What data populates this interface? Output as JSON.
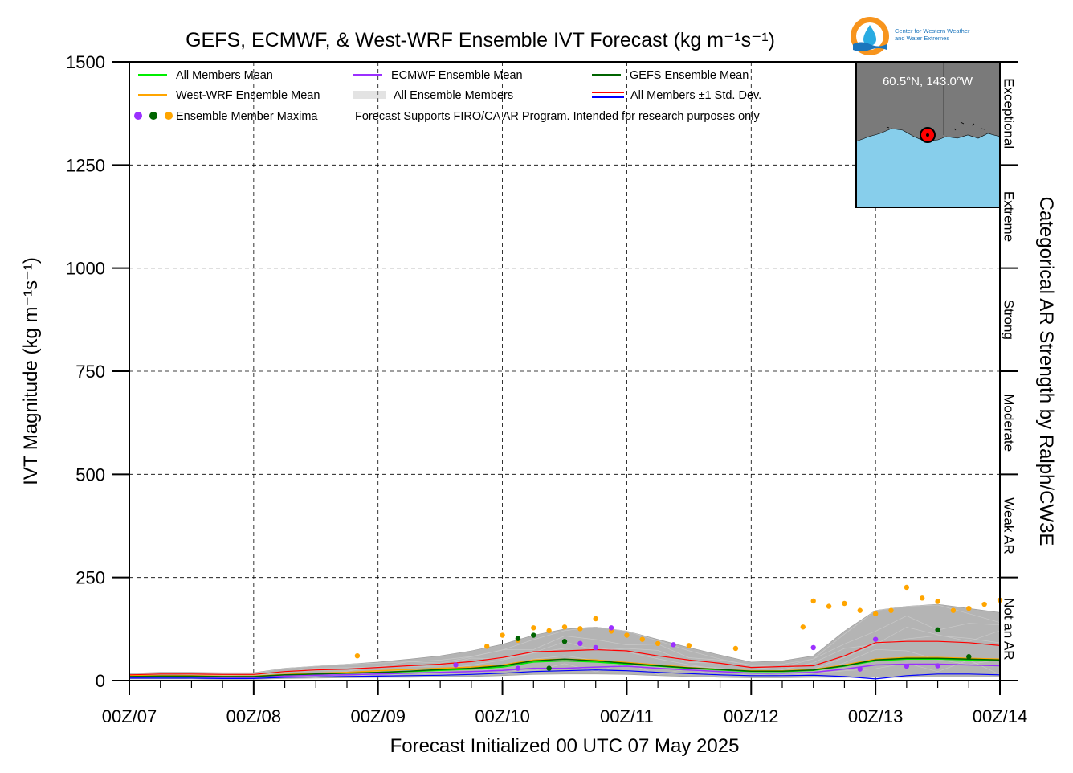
{
  "chart_data": {
    "type": "line",
    "title": "GEFS, ECMWF, & West-WRF Ensemble IVT Forecast (kg m⁻¹s⁻¹)",
    "xlabel": "Forecast Initialized 00 UTC 07 May 2025",
    "ylabel": "IVT Magnitude (kg m⁻¹s⁻¹)",
    "right_label": "Categorical AR Strength by Ralph/CW3E",
    "ylim": [
      0,
      1500
    ],
    "xlim_hours": [
      0,
      168
    ],
    "x_tick_hours": [
      0,
      24,
      48,
      72,
      96,
      120,
      144,
      168
    ],
    "x_tick_labels": [
      "00Z/07",
      "00Z/08",
      "00Z/09",
      "00Z/10",
      "00Z/11",
      "00Z/12",
      "00Z/13",
      "00Z/14"
    ],
    "y_ticks": [
      0,
      250,
      500,
      750,
      1000,
      1250,
      1500
    ],
    "y_tick_labels": [
      "0",
      "250",
      "500",
      "750",
      "1000",
      "1250",
      "1500"
    ],
    "grid": true,
    "categories": [
      {
        "label": "Not an AR",
        "range": [
          0,
          250
        ]
      },
      {
        "label": "Weak AR",
        "range": [
          250,
          500
        ]
      },
      {
        "label": "Moderate",
        "range": [
          500,
          750
        ]
      },
      {
        "label": "Strong",
        "range": [
          750,
          1000
        ]
      },
      {
        "label": "Extreme",
        "range": [
          1000,
          1250
        ]
      },
      {
        "label": "Exceptional",
        "range": [
          1250,
          1500
        ]
      }
    ],
    "x": [
      0,
      6,
      12,
      18,
      24,
      30,
      36,
      42,
      48,
      54,
      60,
      66,
      72,
      78,
      84,
      90,
      96,
      102,
      108,
      114,
      120,
      126,
      132,
      138,
      144,
      150,
      156,
      162,
      168
    ],
    "series": [
      {
        "name": "All Members Mean",
        "color": "#00ee00",
        "width": 1.5,
        "values": [
          10,
          11,
          11,
          10,
          10,
          14,
          16,
          18,
          20,
          22,
          25,
          28,
          33,
          45,
          48,
          45,
          40,
          35,
          30,
          26,
          22,
          22,
          25,
          35,
          48,
          52,
          52,
          50,
          48
        ]
      },
      {
        "name": "West-WRF Ensemble Mean",
        "color": "#ffa500",
        "width": 1.5,
        "values": [
          12,
          12,
          12,
          11,
          11,
          15,
          18,
          20,
          24,
          27,
          30,
          33,
          38,
          50,
          52,
          50,
          44,
          38,
          32,
          27,
          24,
          24,
          27,
          38,
          52,
          56,
          56,
          54,
          52
        ]
      },
      {
        "name": "ECMWF Ensemble Mean",
        "color": "#9b30ff",
        "width": 1.5,
        "values": [
          8,
          9,
          9,
          8,
          8,
          11,
          13,
          14,
          16,
          18,
          20,
          22,
          25,
          30,
          30,
          33,
          35,
          30,
          26,
          22,
          18,
          18,
          20,
          28,
          38,
          40,
          40,
          38,
          36
        ]
      },
      {
        "name": "GEFS Ensemble Mean",
        "color": "#006400",
        "width": 1.5,
        "values": [
          10,
          11,
          11,
          10,
          10,
          14,
          16,
          18,
          20,
          23,
          27,
          30,
          36,
          48,
          52,
          48,
          42,
          36,
          31,
          27,
          23,
          23,
          26,
          36,
          50,
          54,
          54,
          52,
          50
        ]
      },
      {
        "name": "All Members ±1 Std. Dev. (upper)",
        "color": "#ff0000",
        "width": 1.2,
        "values": [
          14,
          16,
          16,
          15,
          15,
          22,
          26,
          28,
          32,
          36,
          40,
          46,
          56,
          70,
          72,
          75,
          72,
          60,
          50,
          42,
          32,
          34,
          36,
          60,
          92,
          95,
          95,
          92,
          85
        ]
      },
      {
        "name": "All Members ±1 Std. Dev. (lower)",
        "color": "#0000ff",
        "width": 1.2,
        "values": [
          6,
          6,
          6,
          5,
          5,
          8,
          9,
          10,
          11,
          12,
          13,
          15,
          18,
          22,
          24,
          26,
          24,
          20,
          17,
          14,
          12,
          12,
          13,
          10,
          4,
          12,
          16,
          16,
          14
        ]
      }
    ],
    "ensemble_envelope": {
      "name": "All Ensemble Members",
      "color": "#b4b4b4",
      "upper": [
        18,
        20,
        20,
        19,
        19,
        30,
        35,
        40,
        45,
        52,
        60,
        72,
        88,
        110,
        125,
        130,
        120,
        100,
        80,
        62,
        45,
        48,
        60,
        120,
        170,
        180,
        185,
        175,
        165
      ],
      "lower": [
        4,
        4,
        4,
        3,
        3,
        5,
        6,
        7,
        8,
        8,
        9,
        10,
        12,
        15,
        16,
        16,
        15,
        12,
        10,
        8,
        7,
        7,
        8,
        8,
        8,
        8,
        9,
        9,
        9
      ]
    },
    "maxima_points": [
      {
        "model": "West-WRF",
        "color": "#ffa500",
        "points": [
          [
            44,
            60
          ],
          [
            69,
            83
          ],
          [
            72,
            110
          ],
          [
            75,
            98
          ],
          [
            78,
            128
          ],
          [
            81,
            121
          ],
          [
            84,
            130
          ],
          [
            87,
            126
          ],
          [
            90,
            150
          ],
          [
            93,
            120
          ],
          [
            96,
            110
          ],
          [
            99,
            100
          ],
          [
            102,
            90
          ],
          [
            108,
            85
          ],
          [
            117,
            78
          ],
          [
            130,
            130
          ],
          [
            132,
            193
          ],
          [
            135,
            180
          ],
          [
            138,
            187
          ],
          [
            141,
            170
          ],
          [
            144,
            162
          ],
          [
            147,
            170
          ],
          [
            150,
            226
          ],
          [
            153,
            200
          ],
          [
            156,
            192
          ],
          [
            159,
            170
          ],
          [
            162,
            175
          ],
          [
            165,
            185
          ],
          [
            168,
            195
          ]
        ]
      },
      {
        "model": "GEFS",
        "color": "#006400",
        "points": [
          [
            75,
            102
          ],
          [
            78,
            110
          ],
          [
            81,
            30
          ],
          [
            84,
            95
          ],
          [
            156,
            123
          ],
          [
            162,
            58
          ]
        ]
      },
      {
        "model": "ECMWF",
        "color": "#9b30ff",
        "points": [
          [
            63,
            38
          ],
          [
            75,
            30
          ],
          [
            87,
            90
          ],
          [
            90,
            80
          ],
          [
            93,
            128
          ],
          [
            105,
            87
          ],
          [
            132,
            80
          ],
          [
            141,
            28
          ],
          [
            144,
            100
          ],
          [
            150,
            35
          ],
          [
            156,
            36
          ]
        ]
      }
    ]
  },
  "legend": [
    {
      "label": "All Members Mean",
      "kind": "line",
      "color": "#00ee00"
    },
    {
      "label": "ECMWF Ensemble Mean",
      "kind": "line",
      "color": "#9b30ff"
    },
    {
      "label": "GEFS Ensemble Mean",
      "kind": "line",
      "color": "#006400"
    },
    {
      "label": "West-WRF Ensemble Mean",
      "kind": "line",
      "color": "#ffa500"
    },
    {
      "label": "All Ensemble Members",
      "kind": "lines",
      "color": "#b4b4b4"
    },
    {
      "label": "All Members ±1 Std. Dev.",
      "kind": "double",
      "color": "#ff0000",
      "color2": "#0000ff"
    },
    {
      "label": "Ensemble Member Maxima",
      "kind": "dots",
      "colors": [
        "#9b30ff",
        "#006400",
        "#ffa500"
      ]
    }
  ],
  "note": "Forecast Supports FIRO/CA AR Program. Intended for research purposes only",
  "inset_map": {
    "label": "60.5°N, 143.0°W",
    "land_color": "#7a7a7a",
    "ocean_color": "#87ceeb",
    "marker_color": "#ff0000"
  },
  "logo": {
    "text_line1": "Center for Western Weather",
    "text_line2": "and Water Extremes",
    "colors": [
      "#f7941d",
      "#1b75bc",
      "#29abe2"
    ]
  }
}
